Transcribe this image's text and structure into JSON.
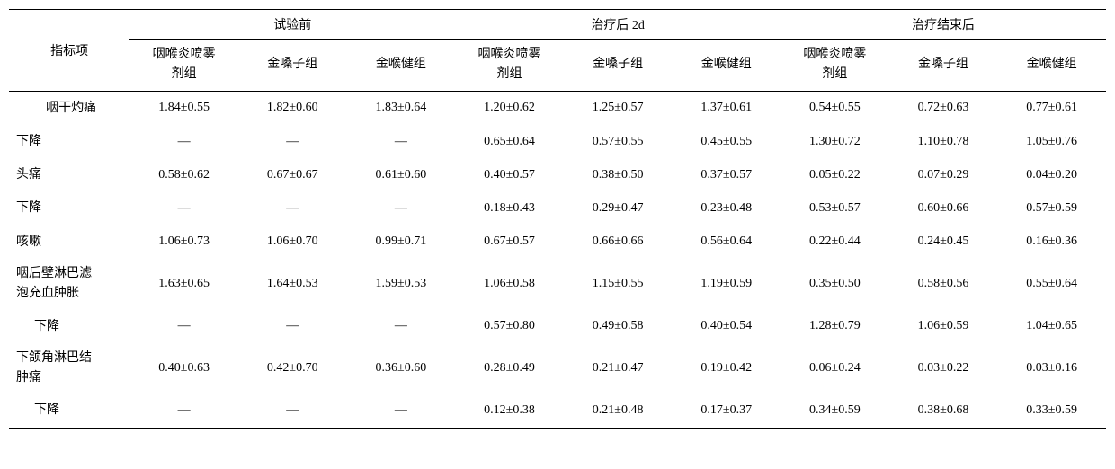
{
  "table": {
    "type": "table",
    "background_color": "#ffffff",
    "text_color": "#000000",
    "border_color": "#000000",
    "font_family": "SimSun",
    "header_fontsize": 14,
    "cell_fontsize": 14,
    "col_widths_pct": [
      11,
      9.88,
      9.88,
      9.88,
      9.88,
      9.88,
      9.88,
      9.88,
      9.88,
      9.88
    ],
    "row_label_header": "指标项",
    "phase_headers": [
      "试验前",
      "治疗后 2d",
      "治疗结束后"
    ],
    "group_headers": [
      "咽喉炎喷雾剂组",
      "金嗓子组",
      "金喉健组"
    ],
    "rows": [
      {
        "label": "咽干灼痛",
        "label_class": "center",
        "cells": [
          "1.84±0.55",
          "1.82±0.60",
          "1.83±0.64",
          "1.20±0.62",
          "1.25±0.57",
          "1.37±0.61",
          "0.54±0.55",
          "0.72±0.63",
          "0.77±0.61"
        ]
      },
      {
        "label": "下降",
        "label_class": "",
        "cells": [
          "—",
          "—",
          "—",
          "0.65±0.64",
          "0.57±0.55",
          "0.45±0.55",
          "1.30±0.72",
          "1.10±0.78",
          "1.05±0.76"
        ]
      },
      {
        "label": "头痛",
        "label_class": "",
        "cells": [
          "0.58±0.62",
          "0.67±0.67",
          "0.61±0.60",
          "0.40±0.57",
          "0.38±0.50",
          "0.37±0.57",
          "0.05±0.22",
          "0.07±0.29",
          "0.04±0.20"
        ]
      },
      {
        "label": "下降",
        "label_class": "",
        "cells": [
          "—",
          "—",
          "—",
          "0.18±0.43",
          "0.29±0.47",
          "0.23±0.48",
          "0.53±0.57",
          "0.60±0.66",
          "0.57±0.59"
        ]
      },
      {
        "label": "咳嗽",
        "label_class": "",
        "cells": [
          "1.06±0.73",
          "1.06±0.70",
          "0.99±0.71",
          "0.67±0.57",
          "0.66±0.66",
          "0.56±0.64",
          "0.22±0.44",
          "0.24±0.45",
          "0.16±0.36"
        ]
      },
      {
        "label": "咽后壁淋巴滤泡充血肿胀",
        "label_class": "two-line",
        "cells": [
          "1.63±0.65",
          "1.64±0.53",
          "1.59±0.53",
          "1.06±0.58",
          "1.15±0.55",
          "1.19±0.59",
          "0.35±0.50",
          "0.58±0.56",
          "0.55±0.64"
        ]
      },
      {
        "label": "下降",
        "label_class": "indent",
        "cells": [
          "—",
          "—",
          "—",
          "0.57±0.80",
          "0.49±0.58",
          "0.40±0.54",
          "1.28±0.79",
          "1.06±0.59",
          "1.04±0.65"
        ]
      },
      {
        "label": "下颌角淋巴结肿痛",
        "label_class": "two-line",
        "cells": [
          "0.40±0.63",
          "0.42±0.70",
          "0.36±0.60",
          "0.28±0.49",
          "0.21±0.47",
          "0.19±0.42",
          "0.06±0.24",
          "0.03±0.22",
          "0.03±0.16"
        ]
      },
      {
        "label": "下降",
        "label_class": "indent",
        "cells": [
          "—",
          "—",
          "—",
          "0.12±0.38",
          "0.21±0.48",
          "0.17±0.37",
          "0.34±0.59",
          "0.38±0.68",
          "0.33±0.59"
        ]
      }
    ]
  }
}
